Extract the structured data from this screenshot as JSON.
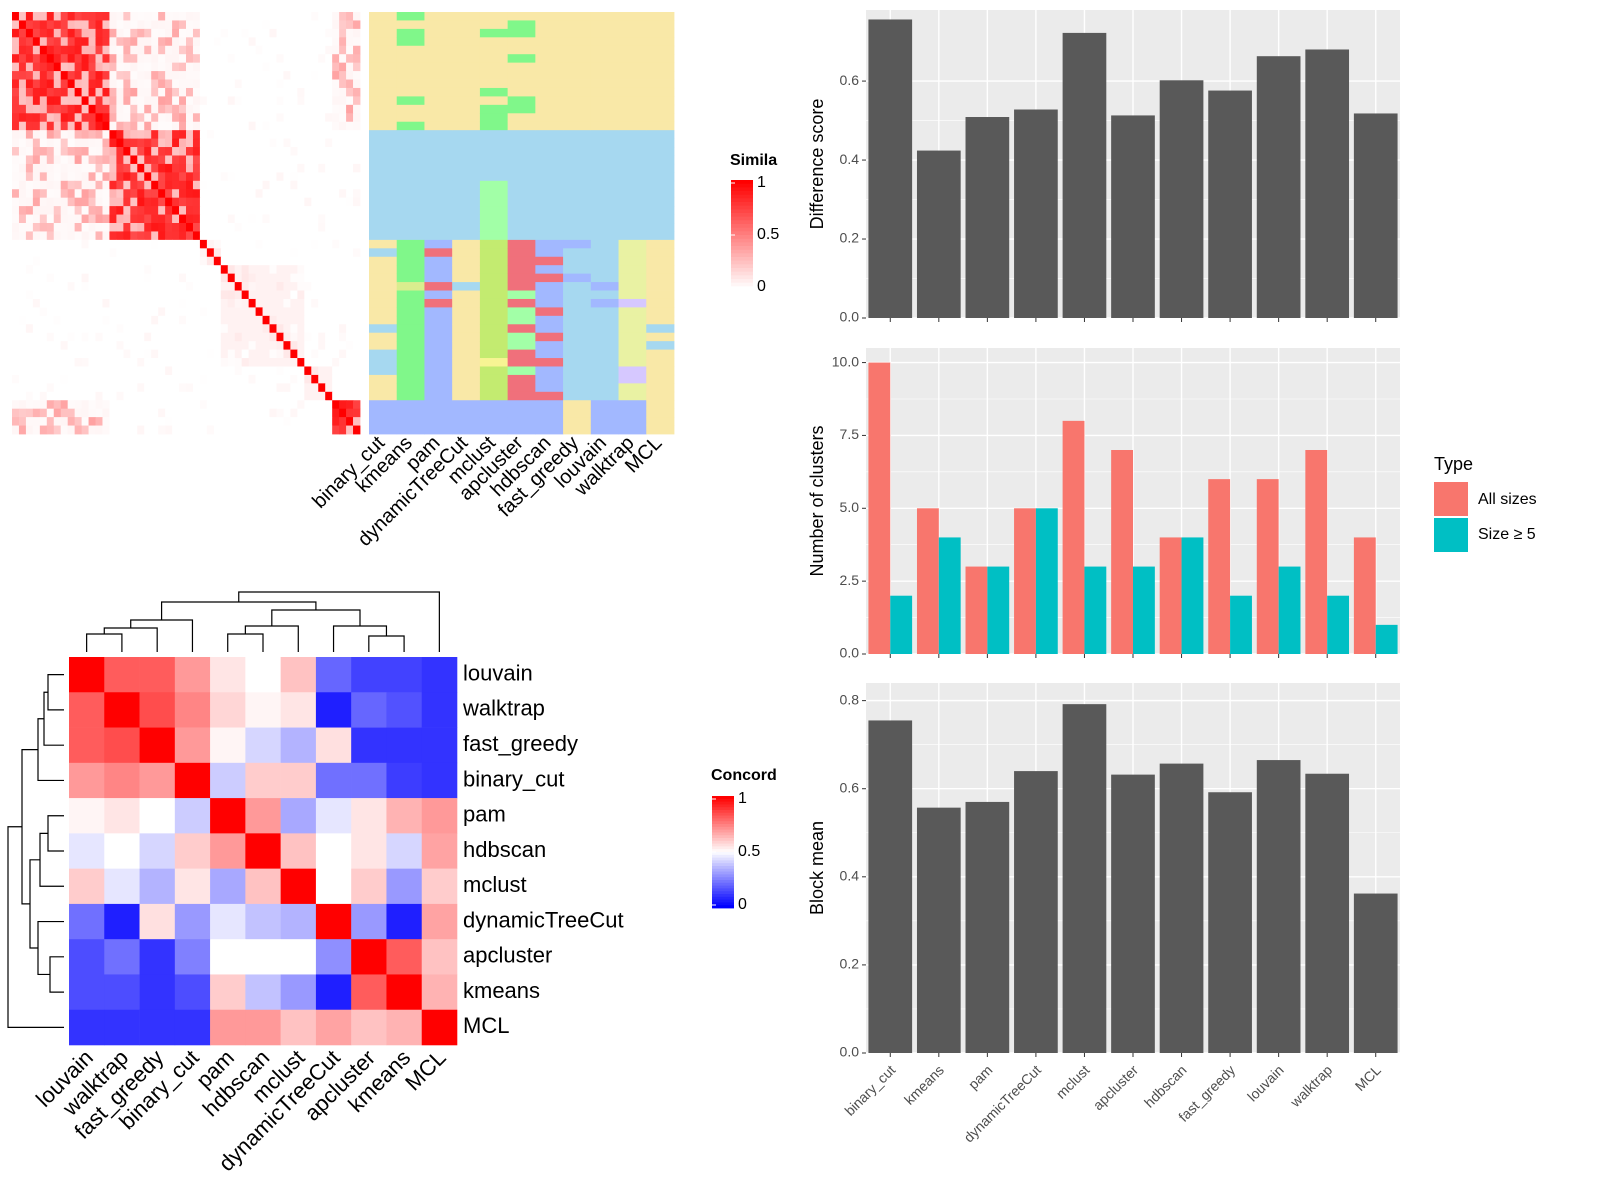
{
  "colors": {
    "heat_high": "#ff0000",
    "heat_low": "#ffffff",
    "heat_zero": "#0000ff",
    "bar": "#595959",
    "all_sizes": "#f8766d",
    "size5": "#00bfc4",
    "panel_bg": "#ebebeb",
    "class_palette": [
      "#f9e8a7",
      "#a6d8f0",
      "#a2b8ff",
      "#f0707b",
      "#a2ffa7",
      "#80f78a",
      "#d9ed8e",
      "#e9f2a3",
      "#d6c8ff",
      "#c3eb70",
      "#f7f493"
    ]
  },
  "chart_data": [
    {
      "id": "similarity-heatmap",
      "type": "heatmap",
      "legend_title": "Simila",
      "legend_ticks": [
        "1",
        "0.5",
        "0"
      ],
      "n_rows": 50
    },
    {
      "id": "class-heatmap",
      "type": "heatmap",
      "columns": [
        "binary_cut",
        "kmeans",
        "pam",
        "dynamicTreeCut",
        "mclust",
        "apcluster",
        "hdbscan",
        "fast_greedy",
        "louvain",
        "walktrap",
        "MCL"
      ]
    },
    {
      "id": "concordance-heatmap",
      "type": "heatmap",
      "legend_title": "Concord",
      "legend_ticks": [
        "1",
        "0.5",
        "0"
      ],
      "rows": [
        "louvain",
        "walktrap",
        "fast_greedy",
        "binary_cut",
        "pam",
        "hdbscan",
        "mclust",
        "dynamicTreeCut",
        "apcluster",
        "kmeans",
        "MCL"
      ],
      "values": [
        [
          1.0,
          0.82,
          0.82,
          0.7,
          0.55,
          0.5,
          0.62,
          0.2,
          0.13,
          0.13,
          0.1
        ],
        [
          0.82,
          1.0,
          0.85,
          0.74,
          0.58,
          0.52,
          0.55,
          0.06,
          0.2,
          0.16,
          0.1
        ],
        [
          0.82,
          0.85,
          1.0,
          0.7,
          0.52,
          0.42,
          0.35,
          0.56,
          0.1,
          0.1,
          0.1
        ],
        [
          0.7,
          0.74,
          0.7,
          1.0,
          0.4,
          0.6,
          0.6,
          0.22,
          0.22,
          0.12,
          0.1
        ],
        [
          0.52,
          0.55,
          0.5,
          0.4,
          1.0,
          0.7,
          0.33,
          0.45,
          0.55,
          0.65,
          0.7
        ],
        [
          0.45,
          0.5,
          0.42,
          0.6,
          0.7,
          1.0,
          0.62,
          0.5,
          0.55,
          0.42,
          0.68
        ],
        [
          0.6,
          0.45,
          0.35,
          0.55,
          0.33,
          0.62,
          1.0,
          0.5,
          0.6,
          0.3,
          0.6
        ],
        [
          0.22,
          0.06,
          0.56,
          0.3,
          0.45,
          0.38,
          0.35,
          1.0,
          0.3,
          0.06,
          0.68
        ],
        [
          0.15,
          0.22,
          0.1,
          0.25,
          0.5,
          0.5,
          0.5,
          0.28,
          1.0,
          0.82,
          0.62
        ],
        [
          0.15,
          0.15,
          0.1,
          0.15,
          0.6,
          0.38,
          0.3,
          0.06,
          0.82,
          1.0,
          0.65
        ],
        [
          0.1,
          0.1,
          0.1,
          0.1,
          0.7,
          0.7,
          0.62,
          0.68,
          0.62,
          0.65,
          1.0
        ]
      ],
      "x_labels": [
        "louvain",
        "walktrap",
        "fast_greedy",
        "binary_cut",
        "pam",
        "hdbscan",
        "mclust",
        "dynamicTreeCut",
        "apcluster",
        "kmeans",
        "MCL"
      ]
    },
    {
      "id": "difference-score",
      "type": "bar",
      "ylabel": "Difference score",
      "categories": [
        "binary_cut",
        "kmeans",
        "pam",
        "dynamicTreeCut",
        "mclust",
        "apcluster",
        "hdbscan",
        "fast_greedy",
        "louvain",
        "walktrap",
        "MCL"
      ],
      "values": [
        0.756,
        0.424,
        0.509,
        0.528,
        0.722,
        0.513,
        0.602,
        0.576,
        0.663,
        0.68,
        0.518
      ],
      "ylim": [
        0,
        0.78
      ],
      "yticks": [
        "0.0",
        "0.2",
        "0.4",
        "0.6"
      ],
      "grid": true
    },
    {
      "id": "number-of-clusters",
      "type": "bar",
      "ylabel": "Number of clusters",
      "categories": [
        "binary_cut",
        "kmeans",
        "pam",
        "dynamicTreeCut",
        "mclust",
        "apcluster",
        "hdbscan",
        "fast_greedy",
        "louvain",
        "walktrap",
        "MCL"
      ],
      "series": [
        {
          "name": "All sizes",
          "values": [
            10,
            5,
            3,
            5,
            8,
            7,
            4,
            6,
            6,
            7,
            4
          ]
        },
        {
          "name": "Size ≥ 5",
          "values": [
            2,
            4,
            3,
            5,
            3,
            3,
            4,
            2,
            3,
            2,
            1
          ]
        }
      ],
      "ylim": [
        0,
        10.5
      ],
      "yticks": [
        "0.0",
        "2.5",
        "5.0",
        "7.5",
        "10.0"
      ],
      "legend_title": "Type",
      "legend_position": "right",
      "grid": true
    },
    {
      "id": "block-mean",
      "type": "bar",
      "ylabel": "Block mean",
      "categories": [
        "binary_cut",
        "kmeans",
        "pam",
        "dynamicTreeCut",
        "mclust",
        "apcluster",
        "hdbscan",
        "fast_greedy",
        "louvain",
        "walktrap",
        "MCL"
      ],
      "values": [
        0.755,
        0.557,
        0.57,
        0.64,
        0.792,
        0.632,
        0.657,
        0.592,
        0.665,
        0.634,
        0.362
      ],
      "ylim": [
        0,
        0.84
      ],
      "yticks": [
        "0.0",
        "0.2",
        "0.4",
        "0.6",
        "0.8"
      ],
      "grid": true
    }
  ]
}
